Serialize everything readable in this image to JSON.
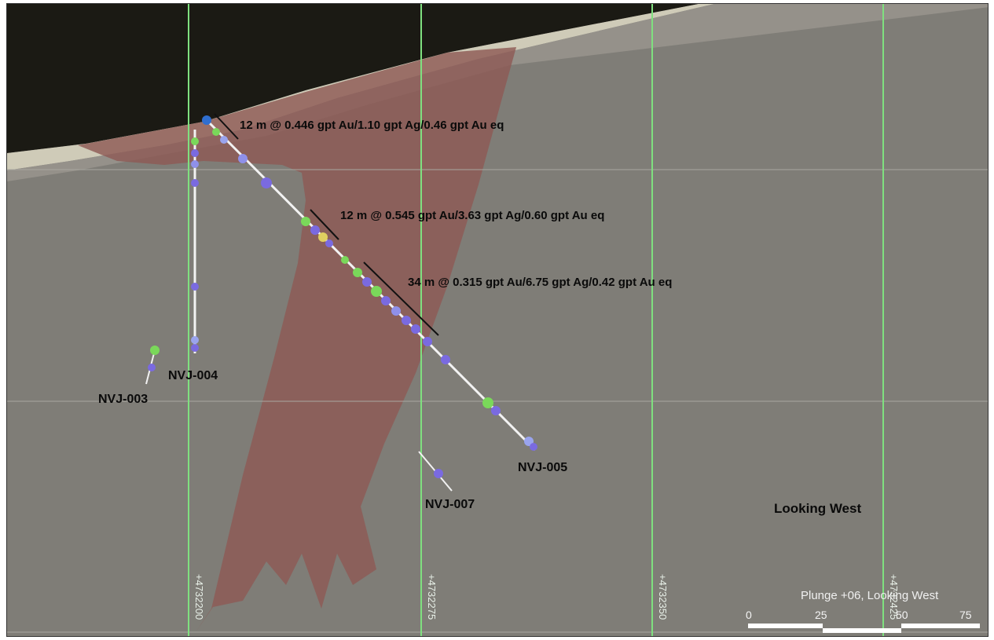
{
  "view": {
    "looking_label": "Looking West",
    "plunge_label": "Plunge +06, Looking West"
  },
  "grid": {
    "northings": [
      "+4732200",
      "+4732275",
      "+4732350",
      "+4732425"
    ]
  },
  "drillholes": [
    {
      "id": "NVJ-003"
    },
    {
      "id": "NVJ-004"
    },
    {
      "id": "NVJ-005"
    },
    {
      "id": "NVJ-007"
    }
  ],
  "intercepts": [
    {
      "text": "12 m @ 0.446 gpt Au/1.10 gpt Ag/0.46 gpt Au eq"
    },
    {
      "text": "12 m @ 0.545 gpt Au/3.63 gpt Ag/0.60 gpt Au eq"
    },
    {
      "text": "34 m @ 0.315 gpt Au/6.75 gpt Ag/0.42 gpt Au eq"
    }
  ],
  "scale_bar": {
    "ticks": [
      "0",
      "25",
      "50",
      "75"
    ]
  },
  "colors": {
    "background": "#7f7d77",
    "sky": "#1b1a14",
    "mineralized_zone": "#8e5a56",
    "grid_line": "#7fe07f",
    "hole_trace": "#f2f2f2"
  }
}
